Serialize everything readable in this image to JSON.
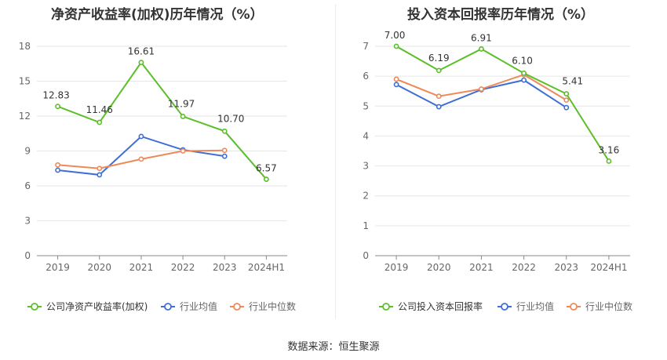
{
  "charts": [
    {
      "title": "净资产收益率(加权)历年情况（%）"
    },
    {
      "title": "投入资本回报率历年情况（%）"
    }
  ],
  "source": {
    "label": "数据来源：",
    "value": "恒生聚源"
  },
  "colors": {
    "company": "#5cbf2a",
    "industry_avg": "#3f6fd6",
    "industry_median": "#ee8a5a",
    "grid": "#e6e6e6",
    "axis": "#888888",
    "tick_text": "#666666"
  },
  "chart_data": [
    {
      "type": "line",
      "title": "净资产收益率(加权)历年情况（%）",
      "categories": [
        "2019",
        "2020",
        "2021",
        "2022",
        "2023",
        "2024H1"
      ],
      "yticks": [
        "0",
        "3",
        "6",
        "9",
        "12",
        "15",
        "18"
      ],
      "ylim": [
        0,
        18
      ],
      "grid": true,
      "legend_position": "bottom",
      "series": [
        {
          "name": "公司净资产收益率(加权)",
          "key": "company",
          "values": [
            12.83,
            11.46,
            16.61,
            11.97,
            10.7,
            6.57
          ],
          "labels": [
            "12.83",
            "11.46",
            "16.61",
            "11.97",
            "10.70",
            "6.57"
          ]
        },
        {
          "name": "行业均值",
          "key": "industry_avg",
          "values": [
            7.35,
            6.95,
            10.25,
            9.1,
            8.55,
            null
          ]
        },
        {
          "name": "行业中位数",
          "key": "industry_median",
          "values": [
            7.8,
            7.5,
            8.3,
            9.0,
            9.05,
            null
          ]
        }
      ]
    },
    {
      "type": "line",
      "title": "投入资本回报率历年情况（%）",
      "categories": [
        "2019",
        "2020",
        "2021",
        "2022",
        "2023",
        "2024H1"
      ],
      "yticks": [
        "0",
        "1",
        "2",
        "3",
        "4",
        "5",
        "6",
        "7"
      ],
      "ylim": [
        0,
        7
      ],
      "grid": true,
      "legend_position": "bottom",
      "series": [
        {
          "name": "公司投入资本回报率",
          "key": "company",
          "values": [
            7.0,
            6.19,
            6.91,
            6.1,
            5.41,
            3.16
          ],
          "labels": [
            "7.00",
            "6.19",
            "6.91",
            "6.10",
            "5.41",
            "3.16"
          ]
        },
        {
          "name": "行业均值",
          "key": "industry_avg",
          "values": [
            5.72,
            4.98,
            5.55,
            5.87,
            4.95,
            null
          ]
        },
        {
          "name": "行业中位数",
          "key": "industry_median",
          "values": [
            5.9,
            5.33,
            5.57,
            6.05,
            5.2,
            null
          ]
        }
      ]
    }
  ]
}
